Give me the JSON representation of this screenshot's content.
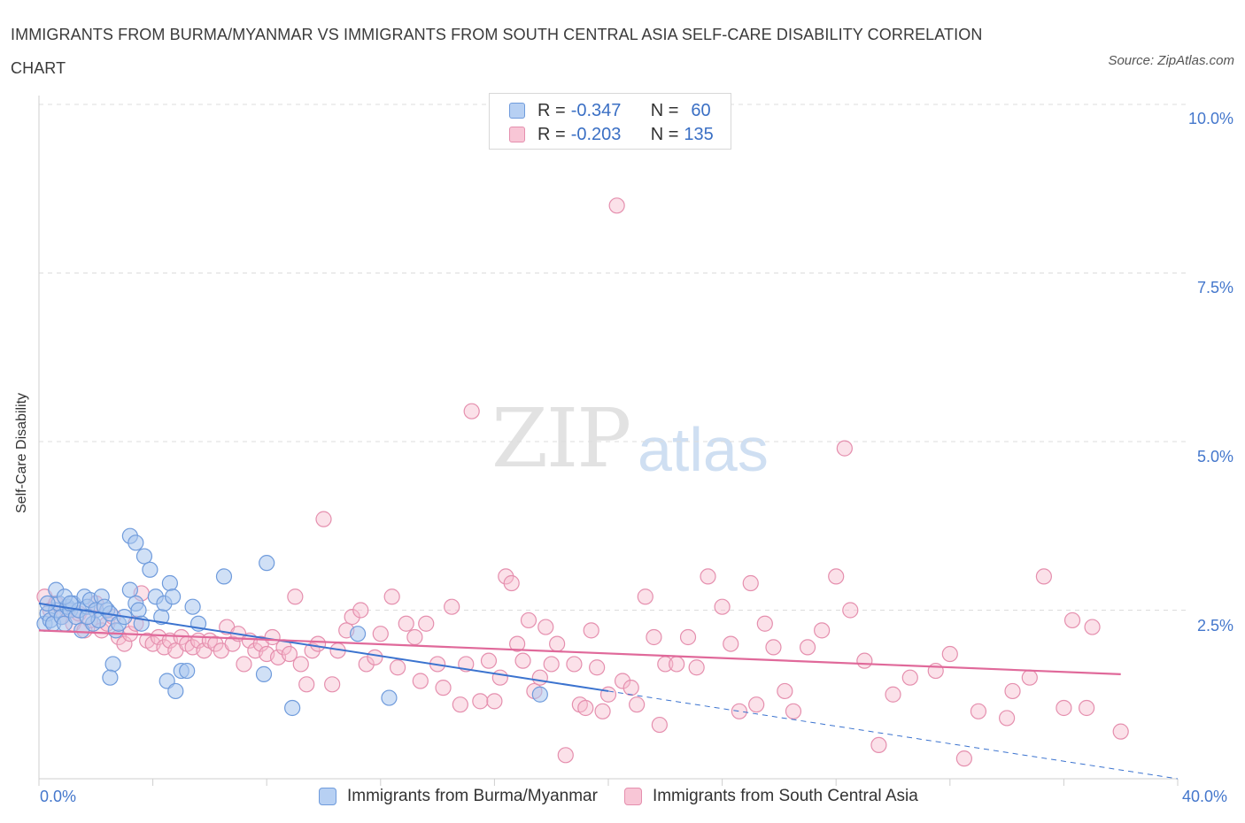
{
  "title": "IMMIGRANTS FROM BURMA/MYANMAR VS IMMIGRANTS FROM SOUTH CENTRAL ASIA SELF-CARE DISABILITY CORRELATION CHART",
  "source": "Source: ZipAtlas.com",
  "watermark": {
    "part1": "ZIP",
    "part2": "atlas"
  },
  "colors": {
    "blue": "#5b8fd6",
    "blue_fill": "#a9c6ef",
    "pink": "#e2739b",
    "pink_fill": "#f6bccf",
    "grid": "#d9d9d9"
  },
  "legend": {
    "rows": [
      {
        "r_label": "R =",
        "r_value": "-0.347",
        "n_label": "N =",
        "n_value": "60"
      },
      {
        "r_label": "R =",
        "r_value": "-0.203",
        "n_label": "N =",
        "n_value": "135"
      }
    ]
  },
  "series_labels": [
    "Immigrants from Burma/Myanmar",
    "Immigrants from South Central Asia"
  ],
  "chart_data": {
    "type": "scatter",
    "title": "IMMIGRANTS FROM BURMA/MYANMAR VS IMMIGRANTS FROM SOUTH CENTRAL ASIA SELF-CARE DISABILITY CORRELATION CHART",
    "xlabel": "",
    "ylabel": "Self-Care Disability",
    "xlim": [
      0,
      40
    ],
    "ylim": [
      0,
      10
    ],
    "x_ticks": [
      "0.0%",
      "40.0%"
    ],
    "y_ticks": [
      "2.5%",
      "5.0%",
      "7.5%",
      "10.0%"
    ],
    "y_tick_values": [
      2.5,
      5.0,
      7.5,
      10.0
    ],
    "grid": true,
    "legend_position": "top-center",
    "series": [
      {
        "name": "Immigrants from Burma/Myanmar",
        "color": "#5b8fd6",
        "trend": {
          "x": [
            0,
            20
          ],
          "y": [
            2.6,
            1.3
          ]
        },
        "trend_dashed": {
          "x": [
            20,
            40
          ],
          "y": [
            1.3,
            0.0
          ]
        },
        "points": [
          [
            0.2,
            2.3
          ],
          [
            0.3,
            2.45
          ],
          [
            0.4,
            2.35
          ],
          [
            0.5,
            2.3
          ],
          [
            0.6,
            2.5
          ],
          [
            0.7,
            2.6
          ],
          [
            0.8,
            2.4
          ],
          [
            0.9,
            2.3
          ],
          [
            1.0,
            2.55
          ],
          [
            1.1,
            2.5
          ],
          [
            1.2,
            2.6
          ],
          [
            1.3,
            2.4
          ],
          [
            1.4,
            2.5
          ],
          [
            1.5,
            2.2
          ],
          [
            1.6,
            2.7
          ],
          [
            1.7,
            2.55
          ],
          [
            1.8,
            2.65
          ],
          [
            1.9,
            2.3
          ],
          [
            2.0,
            2.5
          ],
          [
            2.1,
            2.35
          ],
          [
            0.3,
            2.6
          ],
          [
            0.6,
            2.8
          ],
          [
            0.9,
            2.7
          ],
          [
            1.1,
            2.6
          ],
          [
            1.7,
            2.4
          ],
          [
            2.2,
            2.7
          ],
          [
            2.4,
            2.5
          ],
          [
            2.5,
            2.45
          ],
          [
            2.7,
            2.2
          ],
          [
            2.8,
            2.3
          ],
          [
            2.6,
            1.7
          ],
          [
            2.5,
            1.5
          ],
          [
            2.3,
            2.55
          ],
          [
            3.0,
            2.4
          ],
          [
            3.2,
            2.8
          ],
          [
            3.4,
            2.6
          ],
          [
            3.5,
            2.5
          ],
          [
            3.6,
            2.3
          ],
          [
            3.2,
            3.6
          ],
          [
            3.7,
            3.3
          ],
          [
            3.4,
            3.5
          ],
          [
            3.9,
            3.1
          ],
          [
            4.1,
            2.7
          ],
          [
            4.3,
            2.4
          ],
          [
            4.4,
            2.6
          ],
          [
            4.6,
            2.9
          ],
          [
            4.7,
            2.7
          ],
          [
            4.5,
            1.45
          ],
          [
            4.8,
            1.3
          ],
          [
            5.0,
            1.6
          ],
          [
            5.2,
            1.6
          ],
          [
            5.4,
            2.55
          ],
          [
            5.6,
            2.3
          ],
          [
            6.5,
            3.0
          ],
          [
            7.9,
            1.55
          ],
          [
            8.0,
            3.2
          ],
          [
            8.9,
            1.05
          ],
          [
            11.2,
            2.15
          ],
          [
            12.3,
            1.2
          ],
          [
            17.6,
            1.25
          ]
        ]
      },
      {
        "name": "Immigrants from South Central Asia",
        "color": "#e2739b",
        "trend": {
          "x": [
            0,
            38
          ],
          "y": [
            2.2,
            1.55
          ]
        },
        "points": [
          [
            0.2,
            2.7
          ],
          [
            0.4,
            2.5
          ],
          [
            0.6,
            2.6
          ],
          [
            0.8,
            2.4
          ],
          [
            1.0,
            2.5
          ],
          [
            1.2,
            2.3
          ],
          [
            1.4,
            2.45
          ],
          [
            1.6,
            2.2
          ],
          [
            1.8,
            2.35
          ],
          [
            2.0,
            2.6
          ],
          [
            2.2,
            2.2
          ],
          [
            2.4,
            2.3
          ],
          [
            2.6,
            2.4
          ],
          [
            2.8,
            2.1
          ],
          [
            3.0,
            2.0
          ],
          [
            3.2,
            2.15
          ],
          [
            3.4,
            2.3
          ],
          [
            3.6,
            2.75
          ],
          [
            3.8,
            2.05
          ],
          [
            4.0,
            2.0
          ],
          [
            4.2,
            2.1
          ],
          [
            4.4,
            1.95
          ],
          [
            4.6,
            2.05
          ],
          [
            4.8,
            1.9
          ],
          [
            5.0,
            2.1
          ],
          [
            5.2,
            2.0
          ],
          [
            5.4,
            1.95
          ],
          [
            5.6,
            2.05
          ],
          [
            5.8,
            1.9
          ],
          [
            6.0,
            2.05
          ],
          [
            6.2,
            2.0
          ],
          [
            6.4,
            1.9
          ],
          [
            6.6,
            2.25
          ],
          [
            6.8,
            2.0
          ],
          [
            7.0,
            2.15
          ],
          [
            7.2,
            1.7
          ],
          [
            7.4,
            2.05
          ],
          [
            7.6,
            1.9
          ],
          [
            7.8,
            2.0
          ],
          [
            8.0,
            1.85
          ],
          [
            8.2,
            2.1
          ],
          [
            8.4,
            1.8
          ],
          [
            8.6,
            1.95
          ],
          [
            8.8,
            1.85
          ],
          [
            9.0,
            2.7
          ],
          [
            9.2,
            1.7
          ],
          [
            9.4,
            1.4
          ],
          [
            9.6,
            1.9
          ],
          [
            9.8,
            2.0
          ],
          [
            10.0,
            3.85
          ],
          [
            10.3,
            1.4
          ],
          [
            10.5,
            1.9
          ],
          [
            10.8,
            2.2
          ],
          [
            11.0,
            2.4
          ],
          [
            11.3,
            2.5
          ],
          [
            11.5,
            1.7
          ],
          [
            11.8,
            1.8
          ],
          [
            12.0,
            2.15
          ],
          [
            12.4,
            2.7
          ],
          [
            12.6,
            1.65
          ],
          [
            12.9,
            2.3
          ],
          [
            13.2,
            2.1
          ],
          [
            13.4,
            1.45
          ],
          [
            13.6,
            2.3
          ],
          [
            14.0,
            1.7
          ],
          [
            14.2,
            1.35
          ],
          [
            14.5,
            2.55
          ],
          [
            14.8,
            1.1
          ],
          [
            15.0,
            1.7
          ],
          [
            15.2,
            5.45
          ],
          [
            15.5,
            1.15
          ],
          [
            15.8,
            1.75
          ],
          [
            16.0,
            1.15
          ],
          [
            16.2,
            1.5
          ],
          [
            16.4,
            3.0
          ],
          [
            16.6,
            2.9
          ],
          [
            16.8,
            2.0
          ],
          [
            17.0,
            1.75
          ],
          [
            17.2,
            2.35
          ],
          [
            17.4,
            1.3
          ],
          [
            17.6,
            1.5
          ],
          [
            17.8,
            2.25
          ],
          [
            18.0,
            1.7
          ],
          [
            18.2,
            2.0
          ],
          [
            18.5,
            0.35
          ],
          [
            18.8,
            1.7
          ],
          [
            19.0,
            1.1
          ],
          [
            19.2,
            1.05
          ],
          [
            19.4,
            2.2
          ],
          [
            19.6,
            1.65
          ],
          [
            19.8,
            1.0
          ],
          [
            20.0,
            1.25
          ],
          [
            20.3,
            8.5
          ],
          [
            20.5,
            1.45
          ],
          [
            20.8,
            1.35
          ],
          [
            21.0,
            1.1
          ],
          [
            21.3,
            2.7
          ],
          [
            21.6,
            2.1
          ],
          [
            21.8,
            0.8
          ],
          [
            22.0,
            1.7
          ],
          [
            22.4,
            1.7
          ],
          [
            22.8,
            2.1
          ],
          [
            23.1,
            1.65
          ],
          [
            23.5,
            3.0
          ],
          [
            24.0,
            2.55
          ],
          [
            24.3,
            2.0
          ],
          [
            24.6,
            1.0
          ],
          [
            25.0,
            2.9
          ],
          [
            25.2,
            1.1
          ],
          [
            25.5,
            2.3
          ],
          [
            25.8,
            1.95
          ],
          [
            26.2,
            1.3
          ],
          [
            26.5,
            1.0
          ],
          [
            27.0,
            1.95
          ],
          [
            27.5,
            2.2
          ],
          [
            28.0,
            3.0
          ],
          [
            28.3,
            4.9
          ],
          [
            28.5,
            2.5
          ],
          [
            29.0,
            1.75
          ],
          [
            29.5,
            0.5
          ],
          [
            30.0,
            1.25
          ],
          [
            30.6,
            1.5
          ],
          [
            31.5,
            1.6
          ],
          [
            32.0,
            1.85
          ],
          [
            32.5,
            0.3
          ],
          [
            33.0,
            1.0
          ],
          [
            34.0,
            0.9
          ],
          [
            34.2,
            1.3
          ],
          [
            34.8,
            1.5
          ],
          [
            36.0,
            1.05
          ],
          [
            35.3,
            3.0
          ],
          [
            36.3,
            2.35
          ],
          [
            37.0,
            2.25
          ],
          [
            38.0,
            0.7
          ],
          [
            36.8,
            1.05
          ]
        ]
      }
    ]
  }
}
